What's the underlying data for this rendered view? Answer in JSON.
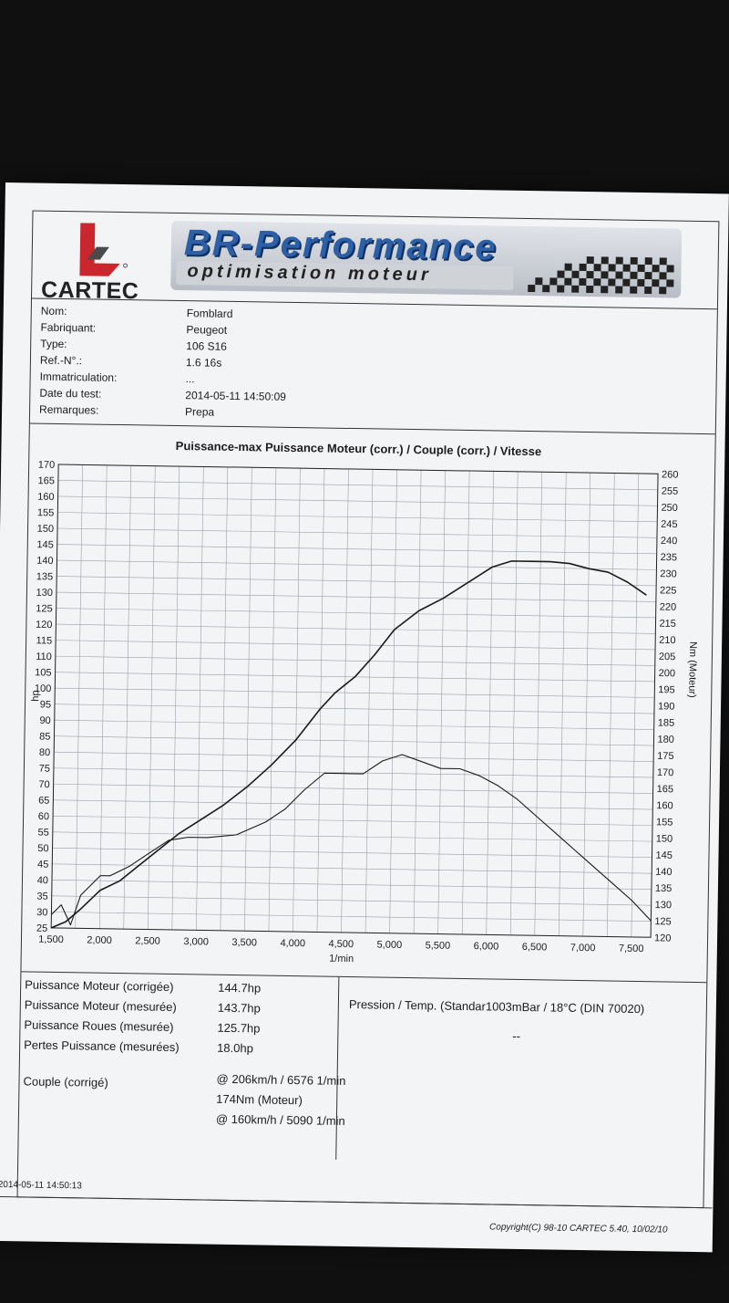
{
  "header": {
    "logo_text": "CARTEC",
    "brand_title": "BR-Performance",
    "brand_subtitle": "optimisation moteur"
  },
  "info": [
    {
      "label": "Nom:",
      "value": "Fomblard"
    },
    {
      "label": "Fabriquant:",
      "value": "Peugeot"
    },
    {
      "label": "Type:",
      "value": "106 S16"
    },
    {
      "label": "Ref.-N°.:",
      "value": "1.6 16s"
    },
    {
      "label": "Immatriculation:",
      "value": "..."
    },
    {
      "label": "Date du test:",
      "value": "2014-05-11 14:50:09"
    },
    {
      "label": "Remarques:",
      "value": "Prepa"
    }
  ],
  "chart_data": {
    "type": "line",
    "title": "Puissance-max Puissance Moteur (corr.) / Couple (corr.) / Vitesse",
    "xlabel": "1/min",
    "ylabel": "hp",
    "y2label": "Nm (Moteur)",
    "xlim": [
      1500,
      7700
    ],
    "ylim": [
      25,
      170
    ],
    "y2lim": [
      120,
      260
    ],
    "x_ticks": [
      1500,
      2000,
      2500,
      3000,
      3500,
      4000,
      4500,
      5000,
      5500,
      6000,
      6500,
      7000,
      7500
    ],
    "x_tick_labels": [
      "1,500",
      "2,000",
      "2,500",
      "3,000",
      "3,500",
      "4,000",
      "4,500",
      "5,000",
      "5,500",
      "6,000",
      "6,500",
      "7,000",
      "7,500"
    ],
    "y_ticks": [
      25,
      30,
      35,
      40,
      45,
      50,
      55,
      60,
      65,
      70,
      75,
      80,
      85,
      90,
      95,
      100,
      105,
      110,
      115,
      120,
      125,
      130,
      135,
      140,
      145,
      150,
      155,
      160,
      165,
      170
    ],
    "y2_ticks": [
      120,
      125,
      130,
      135,
      140,
      145,
      150,
      155,
      160,
      165,
      170,
      175,
      180,
      185,
      190,
      195,
      200,
      205,
      210,
      215,
      220,
      225,
      230,
      235,
      240,
      245,
      250,
      255,
      260
    ],
    "grid": true,
    "series": [
      {
        "axis": "left",
        "x": [
          1500,
          1650,
          1800,
          2000,
          2200,
          2400,
          2600,
          2800,
          3000,
          3250,
          3500,
          3750,
          4000,
          4250,
          4400,
          4600,
          4800,
          5000,
          5250,
          5500,
          5800,
          6000,
          6200,
          6400,
          6600,
          6800,
          7000,
          7200,
          7400,
          7600
        ],
        "y": [
          25,
          27,
          31,
          37,
          40,
          45,
          50,
          55,
          59,
          64,
          70,
          77,
          85,
          95,
          100,
          105,
          112,
          120,
          126,
          130,
          136,
          140,
          142,
          142,
          142,
          141.5,
          140,
          139,
          136,
          132
        ]
      },
      {
        "axis": "right",
        "x": [
          1500,
          1600,
          1700,
          1800,
          1900,
          2000,
          2100,
          2300,
          2500,
          2700,
          2900,
          3100,
          3400,
          3700,
          3900,
          4100,
          4300,
          4500,
          4700,
          4900,
          5100,
          5300,
          5500,
          5700,
          5900,
          6100,
          6300,
          6500,
          6700,
          6900,
          7100,
          7300,
          7500,
          7700
        ],
        "y": [
          124,
          127,
          121,
          130,
          133,
          136,
          136,
          139,
          143,
          147,
          148,
          148,
          149,
          153,
          157,
          163,
          168,
          168,
          168,
          172,
          174,
          172,
          170,
          170,
          168,
          165,
          161,
          156,
          151,
          146,
          141,
          136,
          131,
          125
        ]
      }
    ]
  },
  "results": [
    {
      "label": "Puissance Moteur (corrigée)",
      "value": "144.7hp"
    },
    {
      "label": "Puissance Moteur (mesurée)",
      "value": "143.7hp"
    },
    {
      "label": "Puissance Roues (mesurée)",
      "value": "125.7hp"
    },
    {
      "label": "Pertes Puissance (mesurées)",
      "value": "18.0hp"
    }
  ],
  "couple": {
    "label": "Couple (corrigé)",
    "line1": "@ 206km/h / 6576 1/min",
    "line2": "174Nm (Moteur)",
    "line3": "@ 160km/h / 5090 1/min"
  },
  "pressure": {
    "label": "Pression / Temp. (Standar1003mBar / 18°C   (DIN 70020)",
    "value": "--"
  },
  "footer": {
    "timestamp": "2014-05-11 14:50:13",
    "copyright": "Copyright(C) 98-10 CARTEC 5.40, 10/02/10"
  },
  "colors": {
    "line": "#1a1a1a",
    "grid": "#9aa0a8",
    "logo_red": "#c9272d",
    "brand_blue": "#2c5fa6"
  }
}
